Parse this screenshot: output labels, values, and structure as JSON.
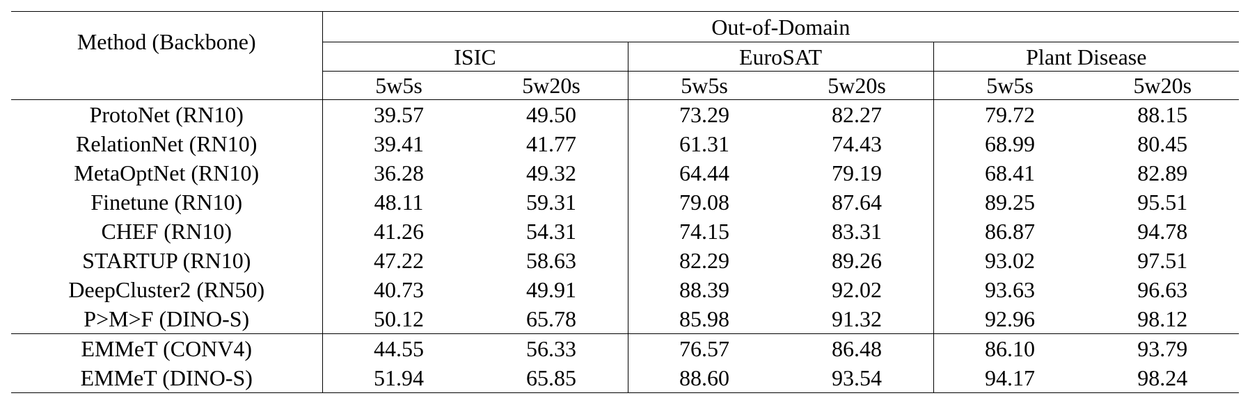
{
  "table": {
    "method_header": "Method (Backbone)",
    "domain_header": "Out-of-Domain",
    "datasets": [
      "ISIC",
      "EuroSAT",
      "Plant Disease"
    ],
    "settings": [
      "5w5s",
      "5w20s",
      "5w5s",
      "5w20s",
      "5w5s",
      "5w20s"
    ],
    "rows": [
      {
        "method": "ProtoNet (RN10)",
        "values": [
          "39.57",
          "49.50",
          "73.29",
          "82.27",
          "79.72",
          "88.15"
        ]
      },
      {
        "method": "RelationNet (RN10)",
        "values": [
          "39.41",
          "41.77",
          "61.31",
          "74.43",
          "68.99",
          "80.45"
        ]
      },
      {
        "method": "MetaOptNet (RN10)",
        "values": [
          "36.28",
          "49.32",
          "64.44",
          "79.19",
          "68.41",
          "82.89"
        ]
      },
      {
        "method": "Finetune (RN10)",
        "values": [
          "48.11",
          "59.31",
          "79.08",
          "87.64",
          "89.25",
          "95.51"
        ]
      },
      {
        "method": "CHEF (RN10)",
        "values": [
          "41.26",
          "54.31",
          "74.15",
          "83.31",
          "86.87",
          "94.78"
        ]
      },
      {
        "method": "STARTUP (RN10)",
        "values": [
          "47.22",
          "58.63",
          "82.29",
          "89.26",
          "93.02",
          "97.51"
        ]
      },
      {
        "method": "DeepCluster2 (RN50)",
        "values": [
          "40.73",
          "49.91",
          "88.39",
          "92.02",
          "93.63",
          "96.63"
        ]
      },
      {
        "method": "P>M>F (DINO-S)",
        "values": [
          "50.12",
          "65.78",
          "85.98",
          "91.32",
          "92.96",
          "98.12"
        ]
      },
      {
        "method": "EMMeT (CONV4)",
        "values": [
          "44.55",
          "56.33",
          "76.57",
          "86.48",
          "86.10",
          "93.79"
        ]
      },
      {
        "method": "EMMeT (DINO-S)",
        "values": [
          "51.94",
          "65.85",
          "88.60",
          "93.54",
          "94.17",
          "98.24"
        ],
        "bold": true
      }
    ]
  }
}
